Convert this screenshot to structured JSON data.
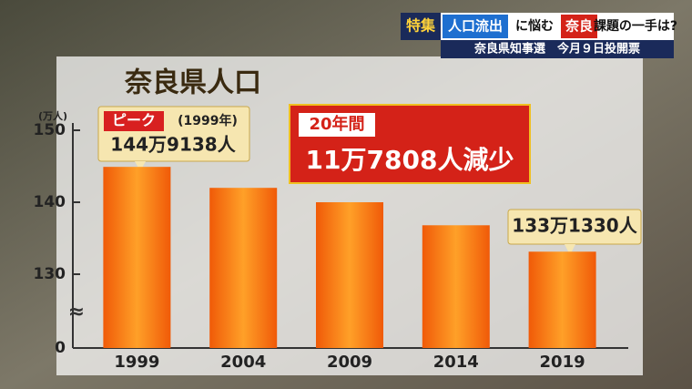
{
  "chart_data": {
    "type": "bar",
    "title": "奈良県人口",
    "y_unit": "(万人)",
    "categories": [
      "1999",
      "2004",
      "2009",
      "2014",
      "2019"
    ],
    "values": [
      144.9138,
      142.0,
      140.0,
      136.8,
      133.133
    ],
    "value_labels": [
      "144万9138人",
      null,
      null,
      null,
      "133万1330人"
    ],
    "color": "#f57a12",
    "ylim": [
      0,
      150
    ],
    "yticks": [
      0,
      130,
      140,
      150
    ],
    "axis_break": "≈",
    "annotations": {
      "peak": "ピーク",
      "peak_year": "(1999年)",
      "period": "20年間",
      "decrease": "11万7808人減少"
    }
  },
  "banner": {
    "tag": "特集",
    "part1": "人口流出",
    "part2": "に悩む",
    "part3": "奈良",
    "part4": "課題の一手は?",
    "subtitle": "奈良県知事選　今月９日投開票"
  }
}
